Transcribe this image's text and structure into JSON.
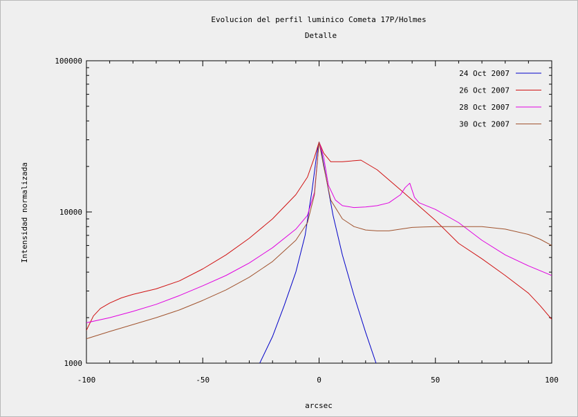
{
  "chart_data": {
    "type": "line",
    "title": "Evolucion del perfil luminico Cometa 17P/Holmes",
    "subtitle": "Detalle",
    "xlabel": "arcsec",
    "ylabel": "Intensidad normalizada",
    "xlim": [
      -100,
      100
    ],
    "ylim": [
      1000,
      100000
    ],
    "ylog": true,
    "grid": false,
    "legend_position": "top-right",
    "x_ticks": [
      -100,
      -50,
      0,
      50,
      100
    ],
    "x_tick_labels": [
      "-100",
      "-50",
      "0",
      "50",
      "100"
    ],
    "y_ticks": [
      1000,
      10000,
      100000
    ],
    "y_tick_labels": [
      "1000",
      "10000",
      "100000"
    ],
    "series": [
      {
        "name": "24 Oct 2007",
        "color": "#0000c8",
        "x": [
          -25.5,
          -20,
          -15,
          -10,
          -6,
          -3,
          -1,
          0,
          1,
          3,
          6,
          10,
          15,
          20,
          24.5
        ],
        "y": [
          1000,
          1500,
          2400,
          4000,
          7000,
          14000,
          24000,
          29000,
          25000,
          17000,
          9500,
          5200,
          2800,
          1600,
          1000
        ]
      },
      {
        "name": "26 Oct 2007",
        "color": "#d01010",
        "x": [
          -100,
          -97,
          -94,
          -90,
          -85,
          -80,
          -70,
          -60,
          -50,
          -40,
          -30,
          -20,
          -10,
          -5,
          -2,
          0,
          2,
          5,
          10,
          18,
          25,
          35,
          50,
          60,
          70,
          80,
          90,
          95,
          100
        ],
        "y": [
          1650,
          2050,
          2300,
          2500,
          2700,
          2850,
          3100,
          3500,
          4200,
          5200,
          6700,
          9000,
          13000,
          17000,
          23000,
          29000,
          24500,
          21500,
          21500,
          22000,
          19000,
          14000,
          8800,
          6200,
          4900,
          3800,
          2900,
          2400,
          1950
        ]
      },
      {
        "name": "28 Oct 2007",
        "color": "#e000e0",
        "x": [
          -100,
          -90,
          -80,
          -70,
          -60,
          -50,
          -40,
          -30,
          -20,
          -10,
          -5,
          -2,
          0,
          2,
          4,
          7,
          10,
          15,
          20,
          25,
          30,
          35,
          37,
          39,
          41,
          43,
          50,
          60,
          70,
          80,
          90,
          100
        ],
        "y": [
          1850,
          2000,
          2200,
          2450,
          2800,
          3250,
          3800,
          4600,
          5800,
          7700,
          9500,
          13500,
          29000,
          23000,
          15000,
          12000,
          11000,
          10700,
          10800,
          11000,
          11500,
          13000,
          14500,
          15500,
          12500,
          11500,
          10400,
          8500,
          6500,
          5200,
          4400,
          3800
        ]
      },
      {
        "name": "30 Oct 2007",
        "color": "#a0522d",
        "x": [
          -100,
          -90,
          -80,
          -70,
          -60,
          -50,
          -40,
          -30,
          -20,
          -10,
          -5,
          -2,
          0,
          2,
          5,
          10,
          15,
          20,
          25,
          30,
          35,
          40,
          45,
          50,
          60,
          70,
          80,
          90,
          95,
          100
        ],
        "y": [
          1450,
          1620,
          1800,
          2000,
          2250,
          2600,
          3050,
          3700,
          4700,
          6500,
          8500,
          13000,
          29000,
          20000,
          12000,
          9000,
          8000,
          7600,
          7500,
          7500,
          7700,
          7900,
          7950,
          8000,
          8000,
          8000,
          7700,
          7100,
          6600,
          6000
        ]
      }
    ]
  }
}
